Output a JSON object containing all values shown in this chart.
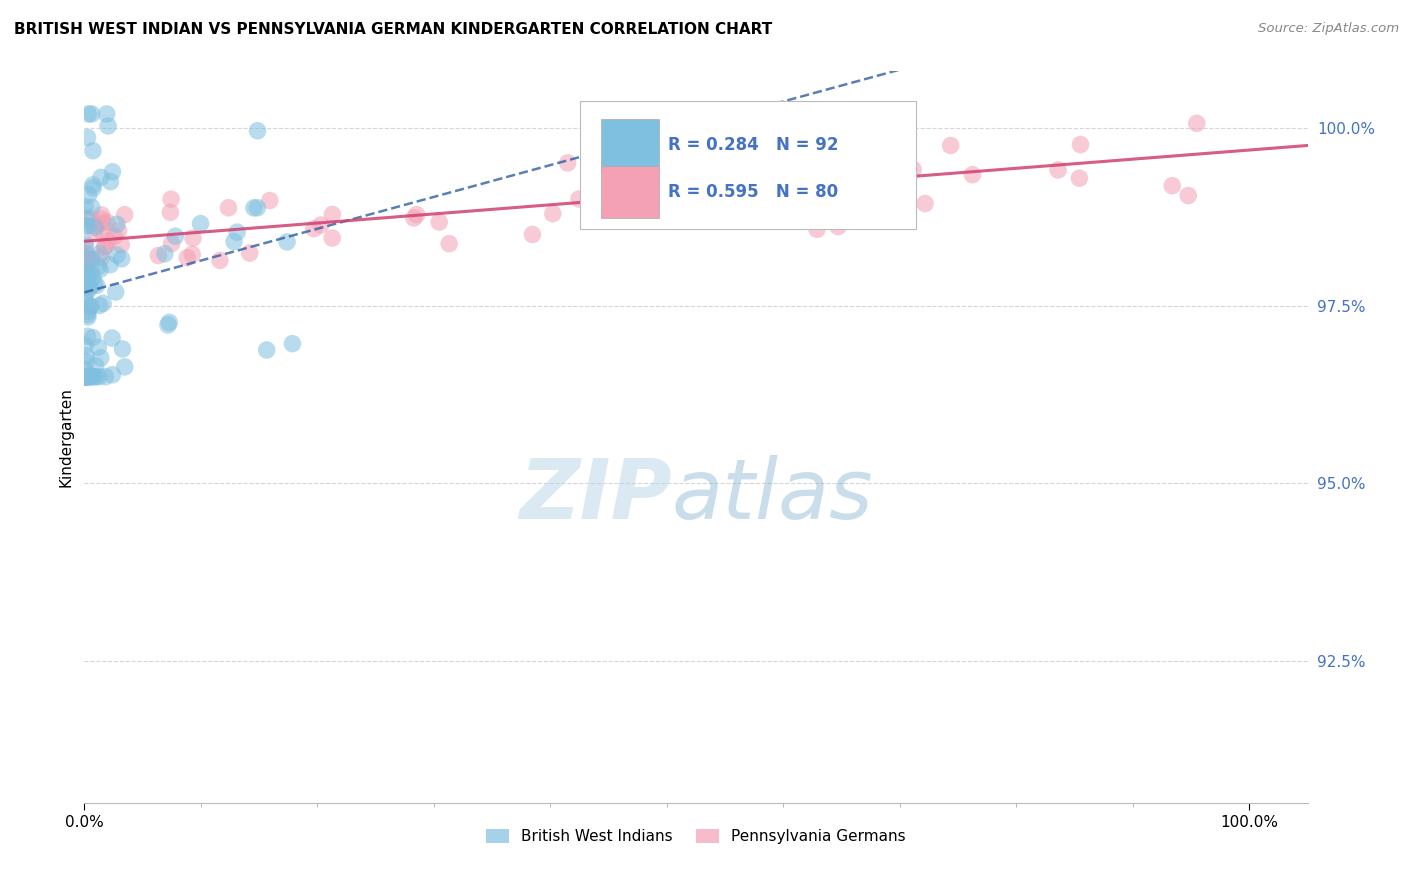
{
  "title": "BRITISH WEST INDIAN VS PENNSYLVANIA GERMAN KINDERGARTEN CORRELATION CHART",
  "source": "Source: ZipAtlas.com",
  "ylabel": "Kindergarten",
  "R1": 0.284,
  "N1": 92,
  "R2": 0.595,
  "N2": 80,
  "blue_color": "#7fbfdf",
  "pink_color": "#f4a0b5",
  "blue_line_color": "#3060a0",
  "pink_line_color": "#d04070",
  "watermark_zip": "ZIP",
  "watermark_atlas": "atlas",
  "background_color": "#ffffff",
  "grid_color": "#cccccc",
  "legend_label1": "British West Indians",
  "legend_label2": "Pennsylvania Germans",
  "ytick_color": "#4472c4",
  "xlim": [
    0.0,
    1.05
  ],
  "ylim": [
    0.905,
    1.008
  ],
  "yticks": [
    0.925,
    0.95,
    0.975,
    1.0
  ],
  "ytick_labels": [
    "92.5%",
    "95.0%",
    "97.5%",
    "100.0%"
  ]
}
